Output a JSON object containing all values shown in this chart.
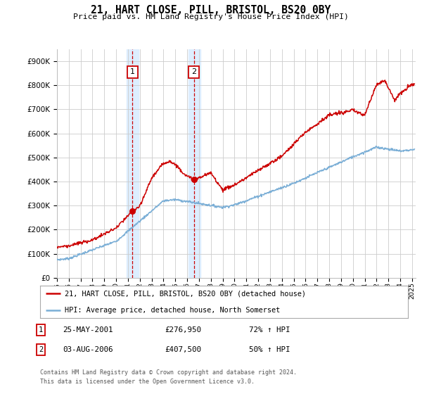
{
  "title": "21, HART CLOSE, PILL, BRISTOL, BS20 0BY",
  "subtitle": "Price paid vs. HM Land Registry's House Price Index (HPI)",
  "legend_line1": "21, HART CLOSE, PILL, BRISTOL, BS20 0BY (detached house)",
  "legend_line2": "HPI: Average price, detached house, North Somerset",
  "annotation1_date": "25-MAY-2001",
  "annotation1_price": 276950,
  "annotation1_price_str": "£276,950",
  "annotation1_hpi": "72% ↑ HPI",
  "annotation2_date": "03-AUG-2006",
  "annotation2_price": 407500,
  "annotation2_price_str": "£407,500",
  "annotation2_hpi": "50% ↑ HPI",
  "footer1": "Contains HM Land Registry data © Crown copyright and database right 2024.",
  "footer2": "This data is licensed under the Open Government Licence v3.0.",
  "red_color": "#cc0000",
  "blue_color": "#7aaed6",
  "background_color": "#ffffff",
  "grid_color": "#cccccc",
  "highlight_color": "#ddeeff",
  "ylim_max": 950000,
  "yticks": [
    0,
    100000,
    200000,
    300000,
    400000,
    500000,
    600000,
    700000,
    800000,
    900000
  ],
  "ann1_x": 2001.38,
  "ann2_x": 2006.58,
  "xmin": 1995,
  "xmax": 2025.3
}
